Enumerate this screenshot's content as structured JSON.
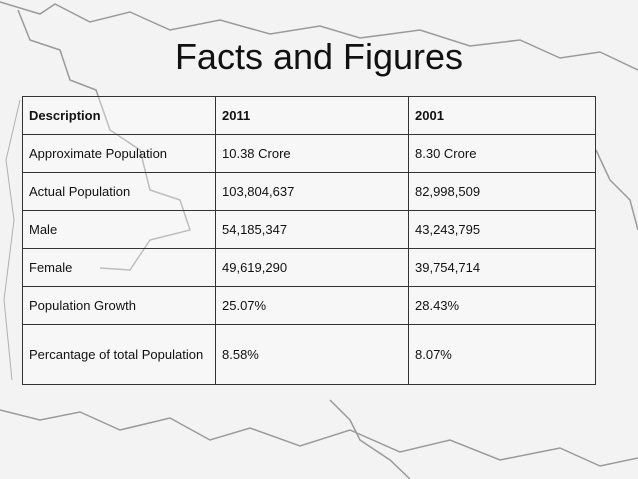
{
  "slide": {
    "title": "Facts and Figures"
  },
  "table": {
    "headers": [
      "Description",
      "2011",
      "2001"
    ],
    "rows": [
      [
        "Approximate Population",
        "10.38 Crore",
        "8.30 Crore"
      ],
      [
        "Actual Population",
        "103,804,637",
        "82,998,509"
      ],
      [
        "Male",
        "54,185,347",
        "43,243,795"
      ],
      [
        "Female",
        "49,619,290",
        "39,754,714"
      ],
      [
        "Population Growth",
        "25.07%",
        "28.43%"
      ],
      [
        "Percantage of total Population",
        "8.58%",
        "8.07%"
      ]
    ]
  },
  "colors": {
    "background": "#f3f3f3",
    "map_outline": "#9a9a9a",
    "text": "#111111"
  }
}
